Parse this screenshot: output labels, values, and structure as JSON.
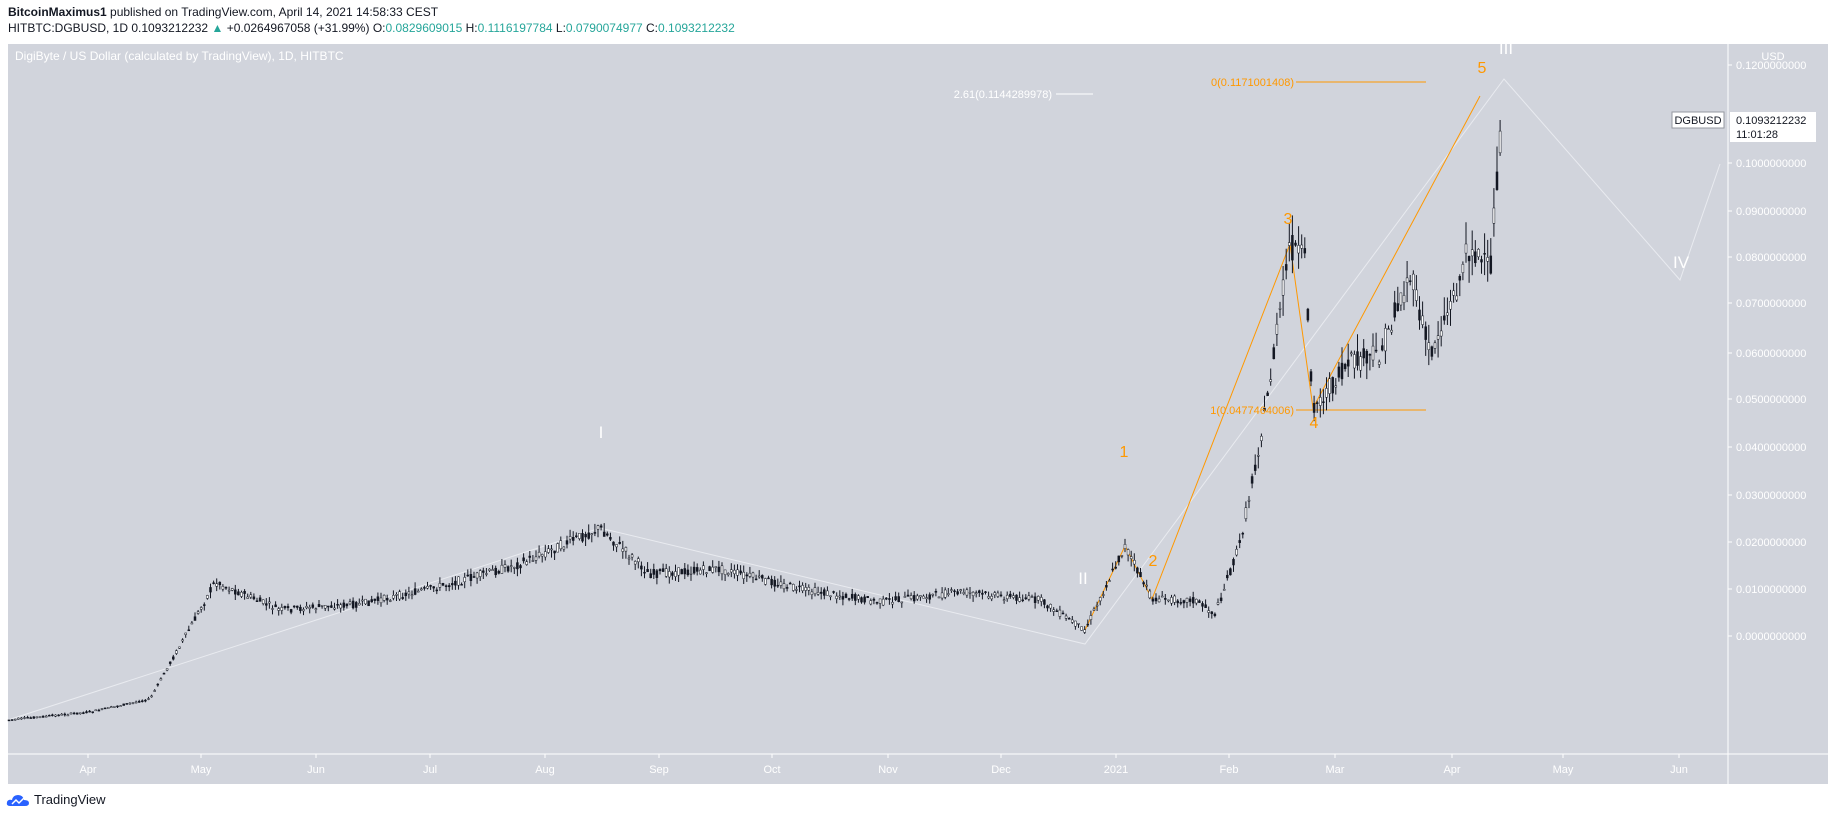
{
  "header": {
    "author": "BitcoinMaximus1",
    "published": " published on TradingView.com, April 14, 2021 14:58:33 CEST",
    "symbol": "HITBTC:DGBUSD, 1D",
    "last": "0.1093212232",
    "change": "+0.0264967058 (+31.99%)",
    "o_label": "O:",
    "o": "0.0829609015",
    "h_label": "H:",
    "h": "0.1116197784",
    "l_label": "L:",
    "l": "0.0790074977",
    "c_label": "C:",
    "c": "0.1093212232"
  },
  "chart_title": "DigiByte / US Dollar (calculated by TradingView), 1D, HITBTC",
  "axis": {
    "currency": "USD",
    "y_ticks": [
      "0.1200000000",
      "0.1000000000",
      "0.0900000000",
      "0.0800000000",
      "0.0700000000",
      "0.0600000000",
      "0.0500000000",
      "0.0400000000",
      "0.0300000000",
      "0.0200000000",
      "0.0100000000",
      "0.0000000000"
    ],
    "x_ticks": [
      "Apr",
      "May",
      "Jun",
      "Jul",
      "Aug",
      "Sep",
      "Oct",
      "Nov",
      "Dec",
      "2021",
      "Feb",
      "Mar",
      "Apr",
      "May",
      "Jun"
    ]
  },
  "price_tag": {
    "symbol": "DGBUSD",
    "value": "0.1093212232",
    "timer": "11:01:28"
  },
  "waves": {
    "major": [
      "I",
      "II",
      "III",
      "IV"
    ],
    "minor": [
      "1",
      "2",
      "3",
      "4",
      "5"
    ]
  },
  "fib": {
    "ext": "2.61(0.1144289978)",
    "zero": "0(0.1171001408)",
    "one": "1(0.0477464006)"
  },
  "colors": {
    "bg": "#d1d4dc",
    "orange": "#ff9800",
    "white": "#ffffff",
    "candle": "#131722",
    "up": "#26a69a",
    "blue": "#2962ff"
  },
  "footer": {
    "brand": "TradingView"
  }
}
